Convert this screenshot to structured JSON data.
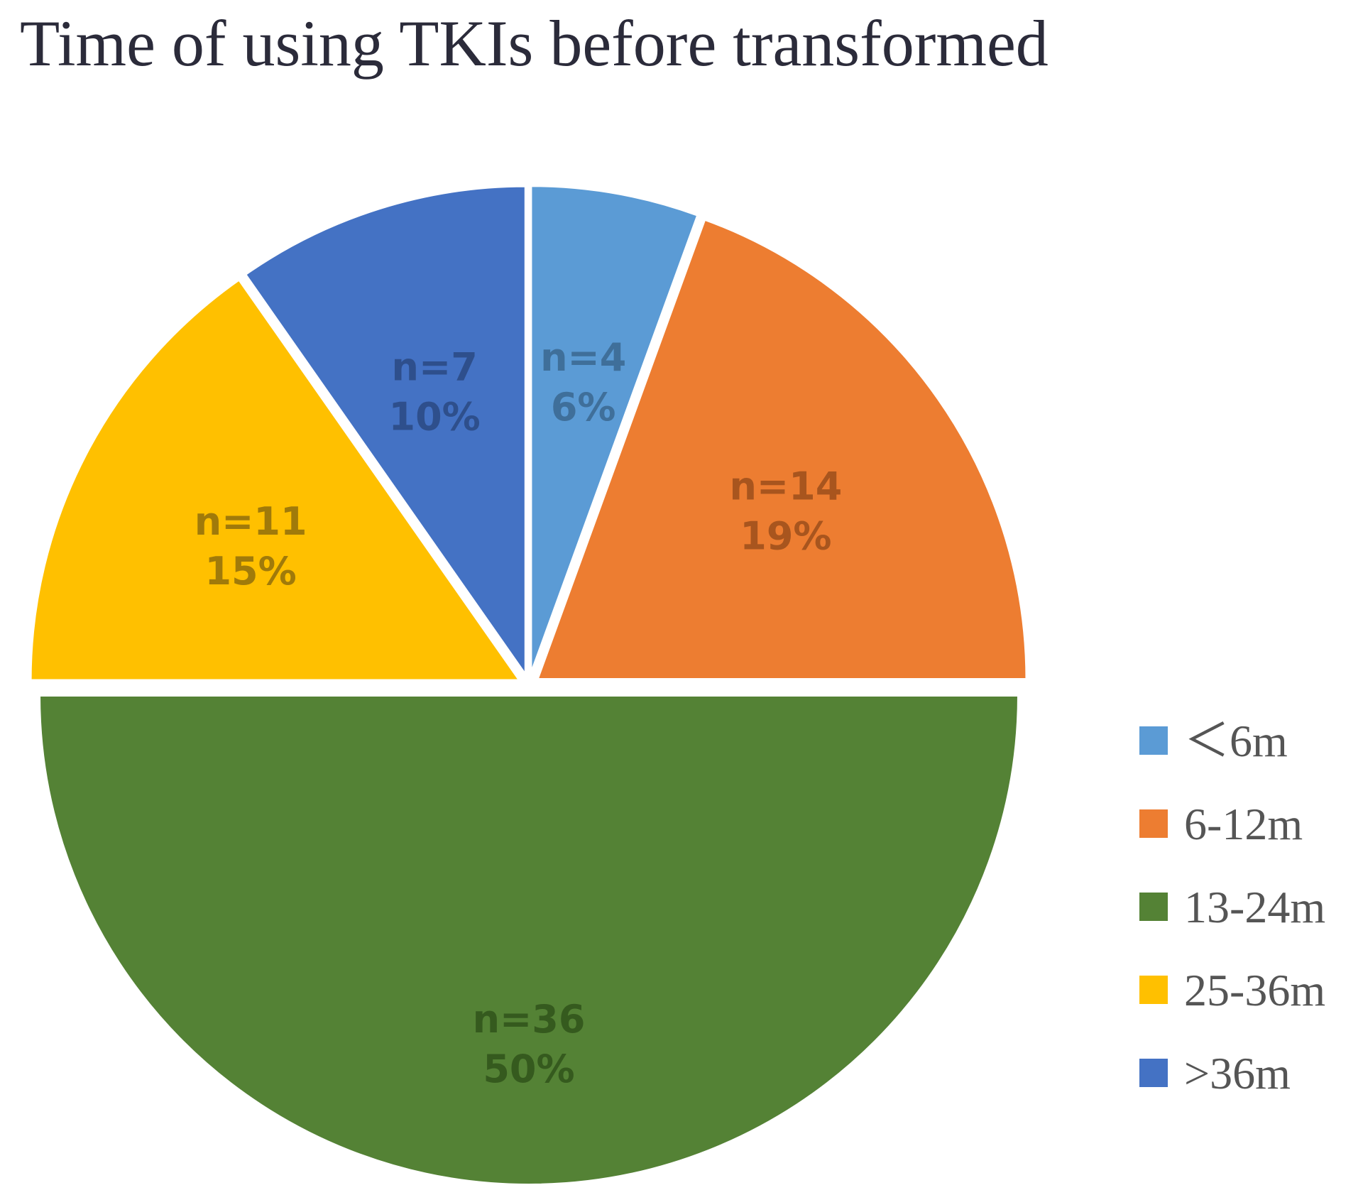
{
  "chart_data": {
    "type": "pie",
    "title": "Time of using TKIs before transformed",
    "slices": [
      {
        "category": "＜6m",
        "n_label": "n=4",
        "pct_label": "6%",
        "value": 4,
        "color": "#5b9bd5",
        "label_color": "#3f6f9a"
      },
      {
        "category": "6-12m",
        "n_label": "n=14",
        "pct_label": "19%",
        "value": 14,
        "color": "#ed7d31",
        "label_color": "#a8551e"
      },
      {
        "category": "13-24m",
        "n_label": "n=36",
        "pct_label": "50%",
        "value": 36,
        "color": "#548235",
        "label_color": "#355a1e"
      },
      {
        "category": "25-36m",
        "n_label": "n=11",
        "pct_label": "15%",
        "value": 11,
        "color": "#ffc000",
        "label_color": "#a07a0a"
      },
      {
        "category": ">36m",
        "n_label": "n=7",
        "pct_label": "10%",
        "value": 7,
        "color": "#4472c4",
        "label_color": "#2e4f8c"
      }
    ],
    "legend_position": "right",
    "start_angle": "12 o'clock",
    "direction": "clockwise",
    "exploded": true
  }
}
